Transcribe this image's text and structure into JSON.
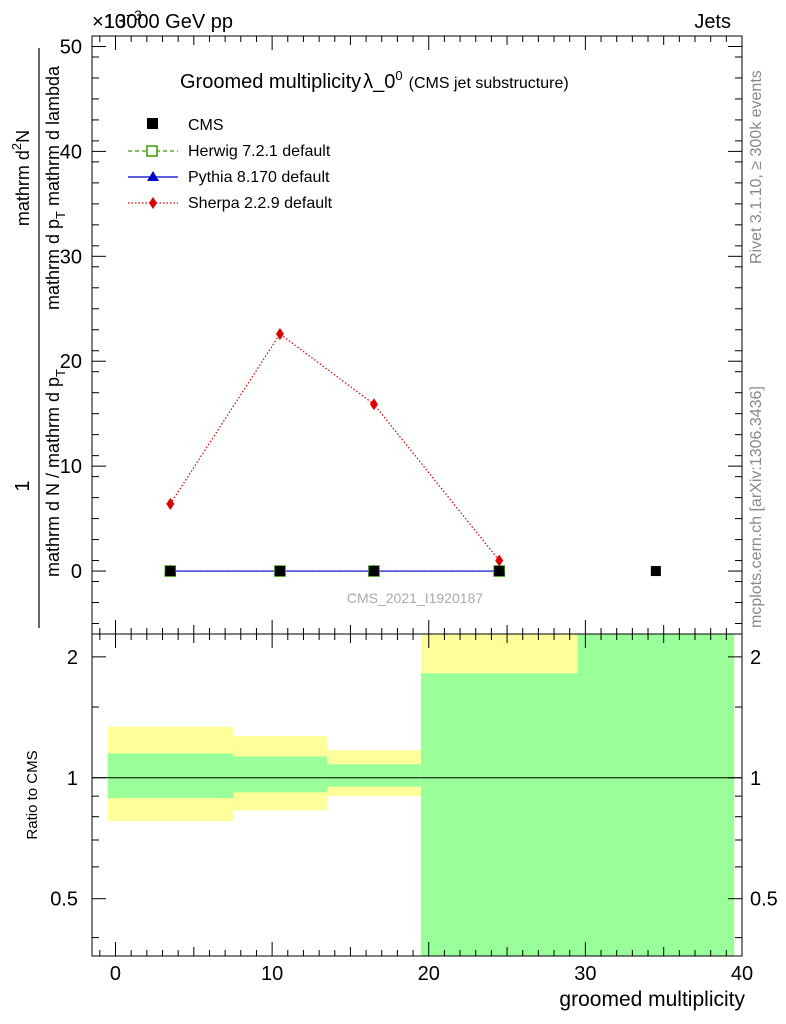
{
  "header": {
    "left": "13000 GeV pp",
    "right": "Jets",
    "exponent": "×10",
    "exponent_power": "−3"
  },
  "side_labels": {
    "rivet": "Rivet 3.1.10, ≥ 300k events",
    "mcplots": "mcplots.cern.ch [arXiv:1306.3436]"
  },
  "watermark": "CMS_2021_I1920187",
  "ylabel_main": {
    "num_left": "1",
    "den_left": "mathrm d N / mathrm d p",
    "den_left_sub": "T",
    "num_right": "mathrm d",
    "num_right_sup": "2",
    "num_right_tail": "N",
    "den_right": "mathrm d p",
    "den_right_sub": "T",
    "den_right_tail": " mathrm d lambda"
  },
  "ratio_ylabel": "Ratio to CMS",
  "xlabel": "groomed multiplicity",
  "chart_data": {
    "type": "line",
    "title": "Groomed multiplicity",
    "title_symbol": "λ_0",
    "title_sup": "0",
    "title_note": "(CMS jet substructure)",
    "xlim": [
      -1.5,
      40
    ],
    "ylim_main": [
      -6,
      51
    ],
    "y_scale_note": "values in units of 10^-3",
    "x_ticks": [
      0,
      10,
      20,
      30,
      40
    ],
    "x_tick_labels": [
      "0",
      "10",
      "20",
      "30",
      "40"
    ],
    "y_ticks_main": [
      0,
      10,
      20,
      30,
      40,
      50
    ],
    "y_tick_labels_main": [
      "0",
      "10",
      "20",
      "30",
      "40",
      "50"
    ],
    "series": [
      {
        "name": "CMS",
        "style": "marker-square",
        "color": "#000000",
        "x": [
          3.5,
          10.5,
          16.5,
          24.5,
          34.5
        ],
        "y": [
          0,
          0,
          0,
          0,
          0
        ]
      },
      {
        "name": "Herwig 7.2.1 default",
        "style": "dashed-open-square",
        "color": "#3a9a00",
        "x": [
          3.5,
          10.5,
          16.5,
          24.5
        ],
        "y": [
          0,
          0,
          0,
          0
        ]
      },
      {
        "name": "Pythia 8.170 default",
        "style": "solid-triangle",
        "color": "#0000cc",
        "x": [
          3.5,
          10.5,
          16.5,
          24.5
        ],
        "y": [
          0,
          0,
          0,
          0
        ]
      },
      {
        "name": "Sherpa 2.2.9 default",
        "style": "dotted-diamond",
        "color": "#dd0000",
        "x": [
          3.5,
          10.5,
          16.5,
          24.5
        ],
        "y": [
          6.4,
          22.6,
          15.9,
          1.0
        ]
      }
    ],
    "ratio": {
      "ylim": [
        0.36,
        2.28
      ],
      "scale": "log",
      "y_ticks": [
        0.5,
        1,
        2
      ],
      "y_tick_labels": [
        "0.5",
        "1",
        "2"
      ],
      "bands": [
        {
          "x0": -0.5,
          "x1": 7.5,
          "yellow": [
            0.78,
            1.34
          ],
          "green": [
            0.89,
            1.15
          ]
        },
        {
          "x0": 7.5,
          "x1": 13.5,
          "yellow": [
            0.83,
            1.27
          ],
          "green": [
            0.92,
            1.13
          ]
        },
        {
          "x0": 13.5,
          "x1": 19.5,
          "yellow": [
            0.9,
            1.17
          ],
          "green": [
            0.95,
            1.08
          ]
        },
        {
          "x0": 19.5,
          "x1": 29.5,
          "yellow": [
            0.36,
            2.28
          ],
          "green": [
            0.36,
            1.82
          ]
        },
        {
          "x0": 29.5,
          "x1": 39.5,
          "yellow": [
            0.36,
            2.28
          ],
          "green": [
            0.36,
            2.28
          ]
        }
      ]
    },
    "colors": {
      "band_yellow": "#ffff99",
      "band_green": "#99ff99"
    }
  }
}
